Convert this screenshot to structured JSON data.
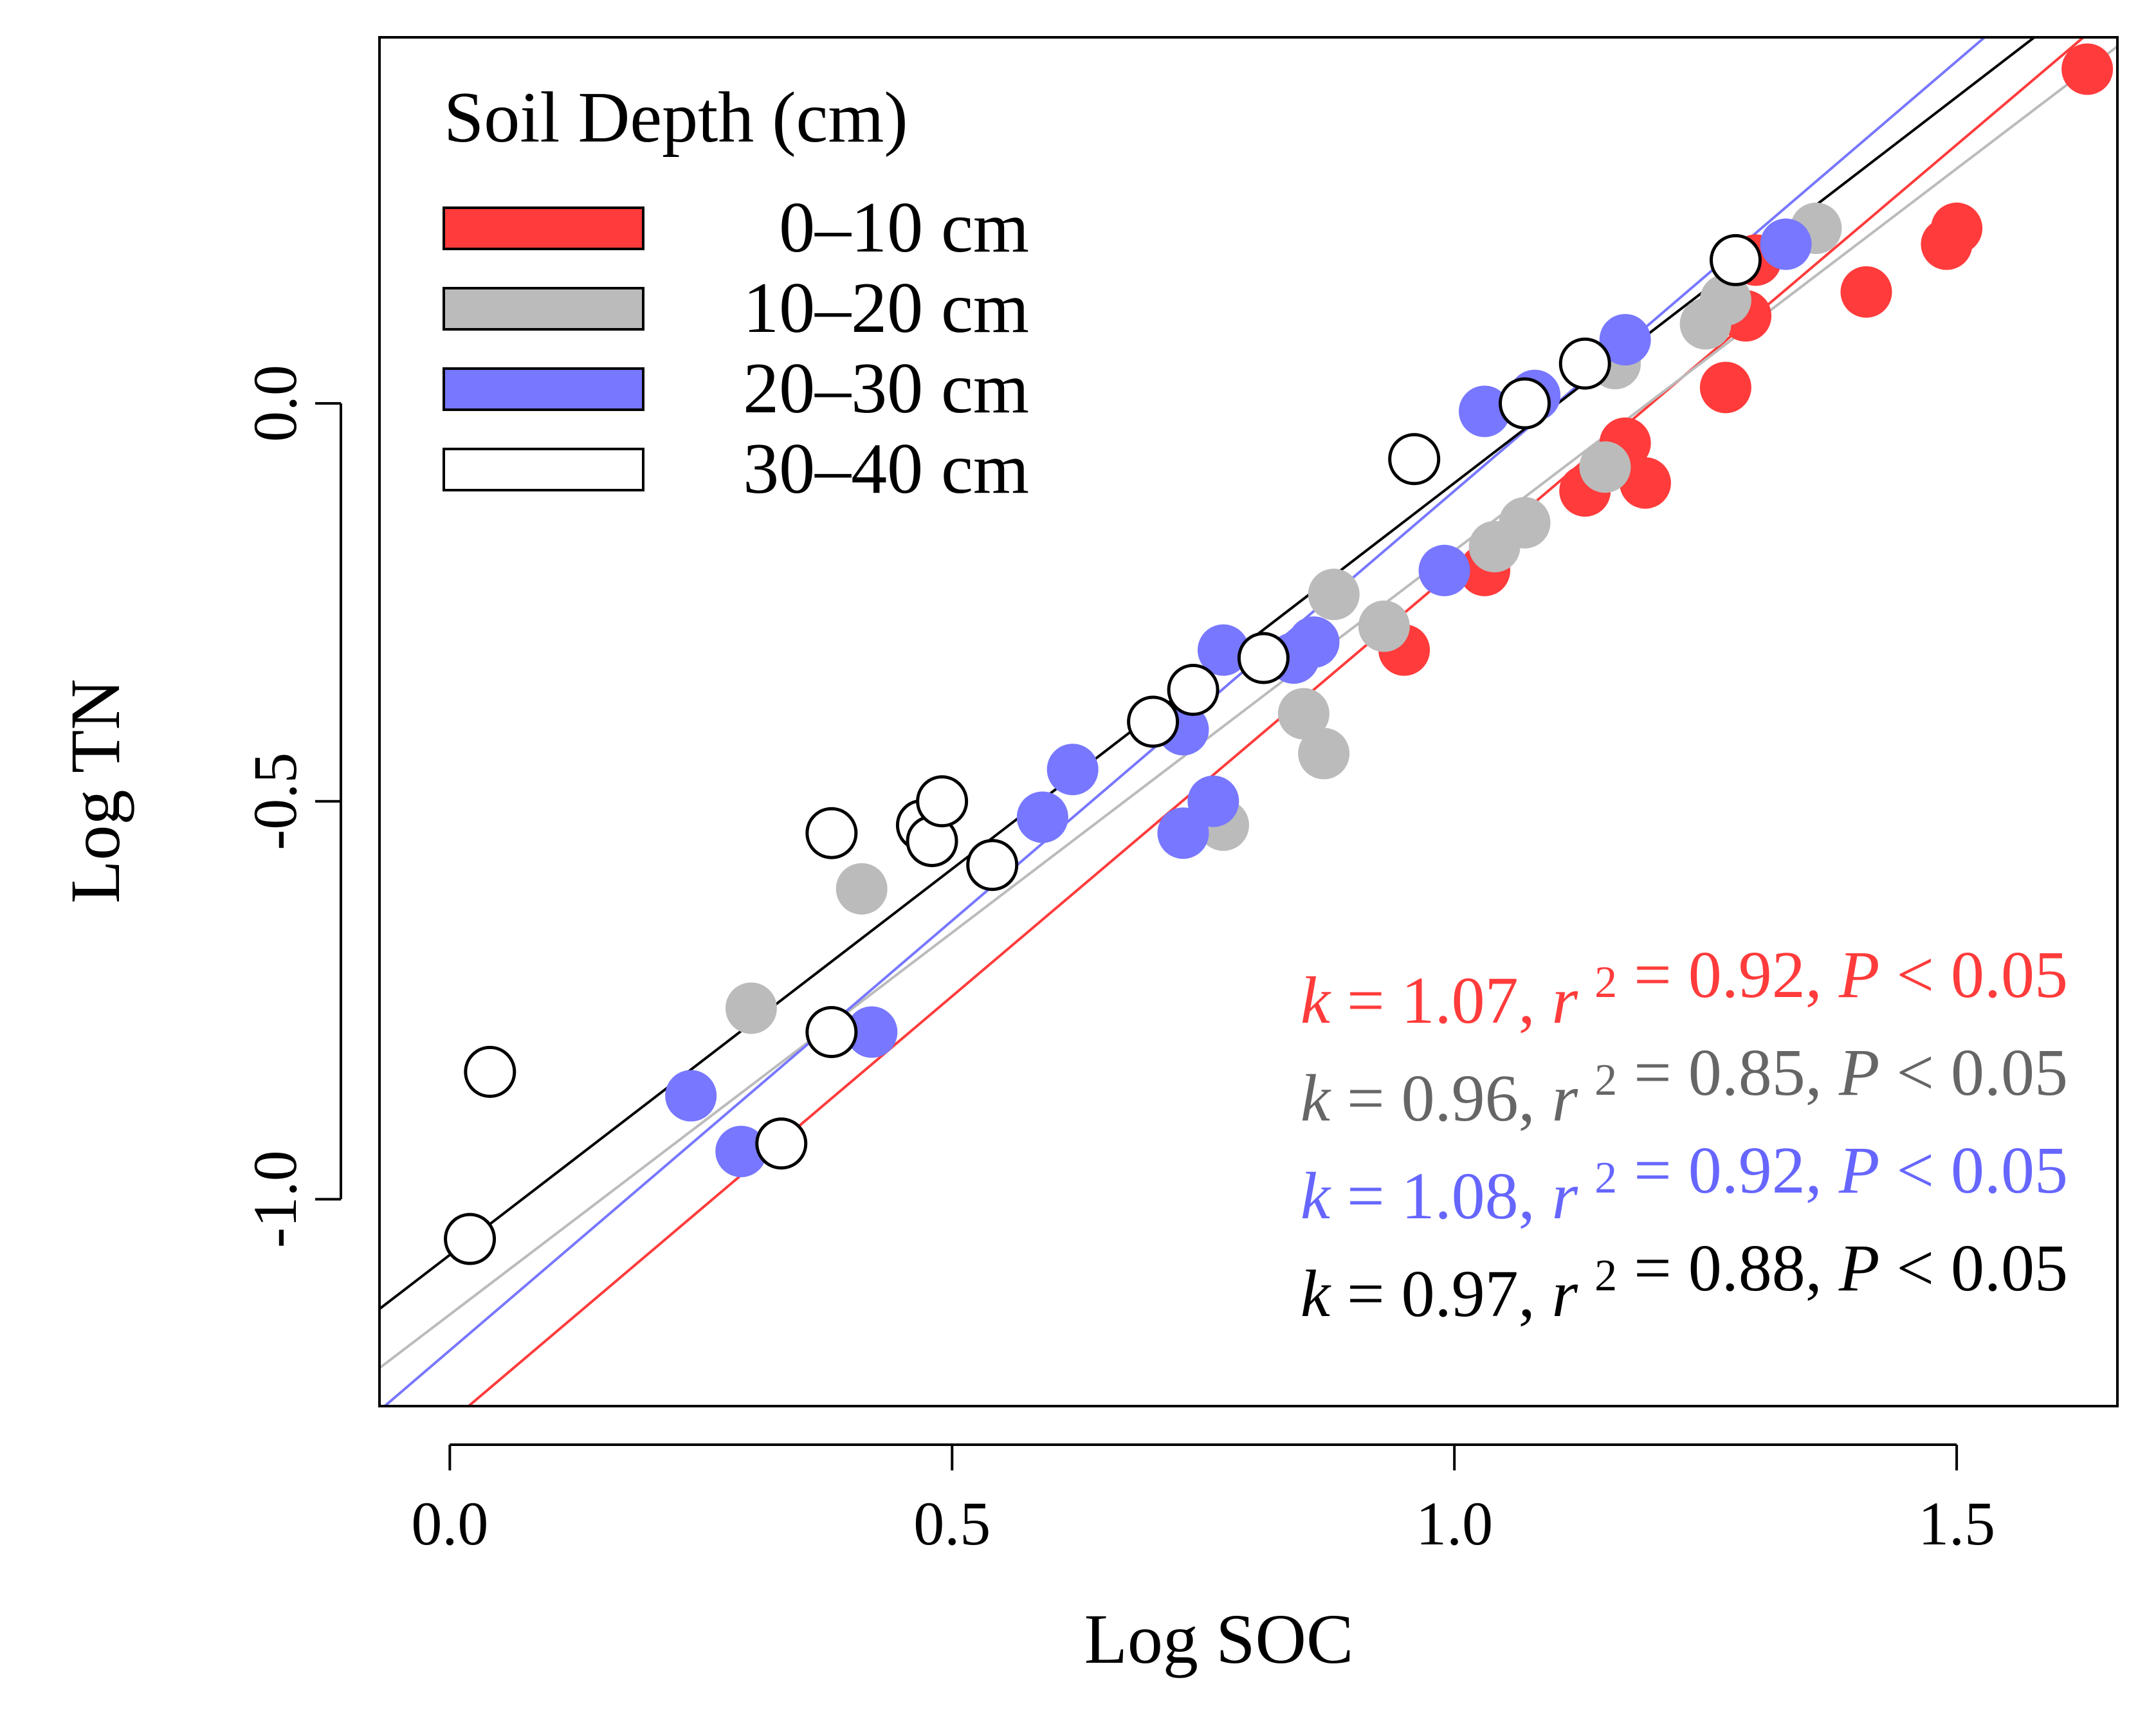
{
  "chart_data": {
    "type": "scatter",
    "xlabel": "Log SOC",
    "ylabel": "Log TN",
    "xlim": [
      -0.07,
      1.66
    ],
    "ylim": [
      -1.26,
      0.46
    ],
    "xticks": [
      {
        "value": 0.0,
        "label": "0.0"
      },
      {
        "value": 0.5,
        "label": "0.5"
      },
      {
        "value": 1.0,
        "label": "1.0"
      },
      {
        "value": 1.5,
        "label": "1.5"
      }
    ],
    "yticks": [
      {
        "value": -1.0,
        "label": "-1.0"
      },
      {
        "value": -0.5,
        "label": "-0.5"
      },
      {
        "value": 0.0,
        "label": "0.0"
      }
    ],
    "legend": {
      "title": "Soil Depth (cm)",
      "position": "top-left",
      "entries": [
        "0–10 cm",
        "10–20 cm",
        "20–30 cm",
        "30–40 cm"
      ]
    },
    "series": [
      {
        "name": "0–10 cm",
        "color": "#ff3b3b",
        "fill": "#ff3b3b",
        "stroke": "none",
        "fit": {
          "slope": 1.07,
          "intercept": -1.28
        },
        "annotation": {
          "k": "1.07",
          "r2": "0.92",
          "p": "0.05"
        },
        "points": [
          [
            0.95,
            -0.31
          ],
          [
            1.03,
            -0.21
          ],
          [
            1.13,
            -0.11
          ],
          [
            1.17,
            -0.05
          ],
          [
            1.19,
            -0.1
          ],
          [
            1.27,
            0.02
          ],
          [
            1.29,
            0.11
          ],
          [
            1.3,
            0.18
          ],
          [
            1.41,
            0.14
          ],
          [
            1.49,
            0.2
          ],
          [
            1.5,
            0.22
          ],
          [
            1.63,
            0.42
          ]
        ]
      },
      {
        "name": "10–20 cm",
        "color": "#bbbbbb",
        "fill": "#bbbbbb",
        "stroke": "none",
        "fit": {
          "slope": 0.96,
          "intercept": -1.145
        },
        "annotation": {
          "k": "0.96",
          "r2": "0.85",
          "p": "0.05"
        },
        "points": [
          [
            0.3,
            -0.76
          ],
          [
            0.41,
            -0.61
          ],
          [
            0.77,
            -0.53
          ],
          [
            0.85,
            -0.39
          ],
          [
            0.87,
            -0.44
          ],
          [
            0.88,
            -0.24
          ],
          [
            0.93,
            -0.28
          ],
          [
            1.04,
            -0.18
          ],
          [
            1.07,
            -0.15
          ],
          [
            1.15,
            -0.08
          ],
          [
            1.16,
            0.05
          ],
          [
            1.25,
            0.1
          ],
          [
            1.27,
            0.13
          ],
          [
            1.36,
            0.22
          ]
        ]
      },
      {
        "name": "20–30 cm",
        "color": "#7777ff",
        "fill": "#7777ff",
        "stroke": "none",
        "fit": {
          "slope": 1.08,
          "intercept": -1.19
        },
        "annotation": {
          "k": "1.08",
          "r2": "0.92",
          "p": "0.05"
        },
        "points": [
          [
            0.24,
            -0.87
          ],
          [
            0.29,
            -0.94
          ],
          [
            0.42,
            -0.79
          ],
          [
            0.59,
            -0.52
          ],
          [
            0.62,
            -0.46
          ],
          [
            0.73,
            -0.54
          ],
          [
            0.73,
            -0.41
          ],
          [
            0.76,
            -0.5
          ],
          [
            0.77,
            -0.31
          ],
          [
            0.84,
            -0.32
          ],
          [
            0.86,
            -0.3
          ],
          [
            0.99,
            -0.21
          ],
          [
            1.03,
            -0.01
          ],
          [
            1.08,
            0.01
          ],
          [
            1.17,
            0.08
          ],
          [
            1.33,
            0.2
          ]
        ]
      },
      {
        "name": "30–40 cm",
        "color": "#000000",
        "fill": "#ffffff",
        "stroke": "#000000",
        "fit": {
          "slope": 0.97,
          "intercept": -1.07
        },
        "annotation": {
          "k": "0.97",
          "r2": "0.88",
          "p": "0.05"
        },
        "points": [
          [
            0.02,
            -1.05
          ],
          [
            0.04,
            -0.84
          ],
          [
            0.33,
            -0.93
          ],
          [
            0.38,
            -0.79
          ],
          [
            0.38,
            -0.54
          ],
          [
            0.47,
            -0.53
          ],
          [
            0.48,
            -0.55
          ],
          [
            0.49,
            -0.5
          ],
          [
            0.54,
            -0.58
          ],
          [
            0.7,
            -0.4
          ],
          [
            0.74,
            -0.36
          ],
          [
            0.81,
            -0.32
          ],
          [
            0.96,
            -0.07
          ],
          [
            1.07,
            0.0
          ],
          [
            1.13,
            0.05
          ],
          [
            1.28,
            0.18
          ]
        ]
      }
    ],
    "annotation_text": {
      "k": "k",
      "eq": " = ",
      "sep": ", ",
      "r": "r",
      "sup": "2",
      "p": "P",
      "lt": " < "
    }
  }
}
